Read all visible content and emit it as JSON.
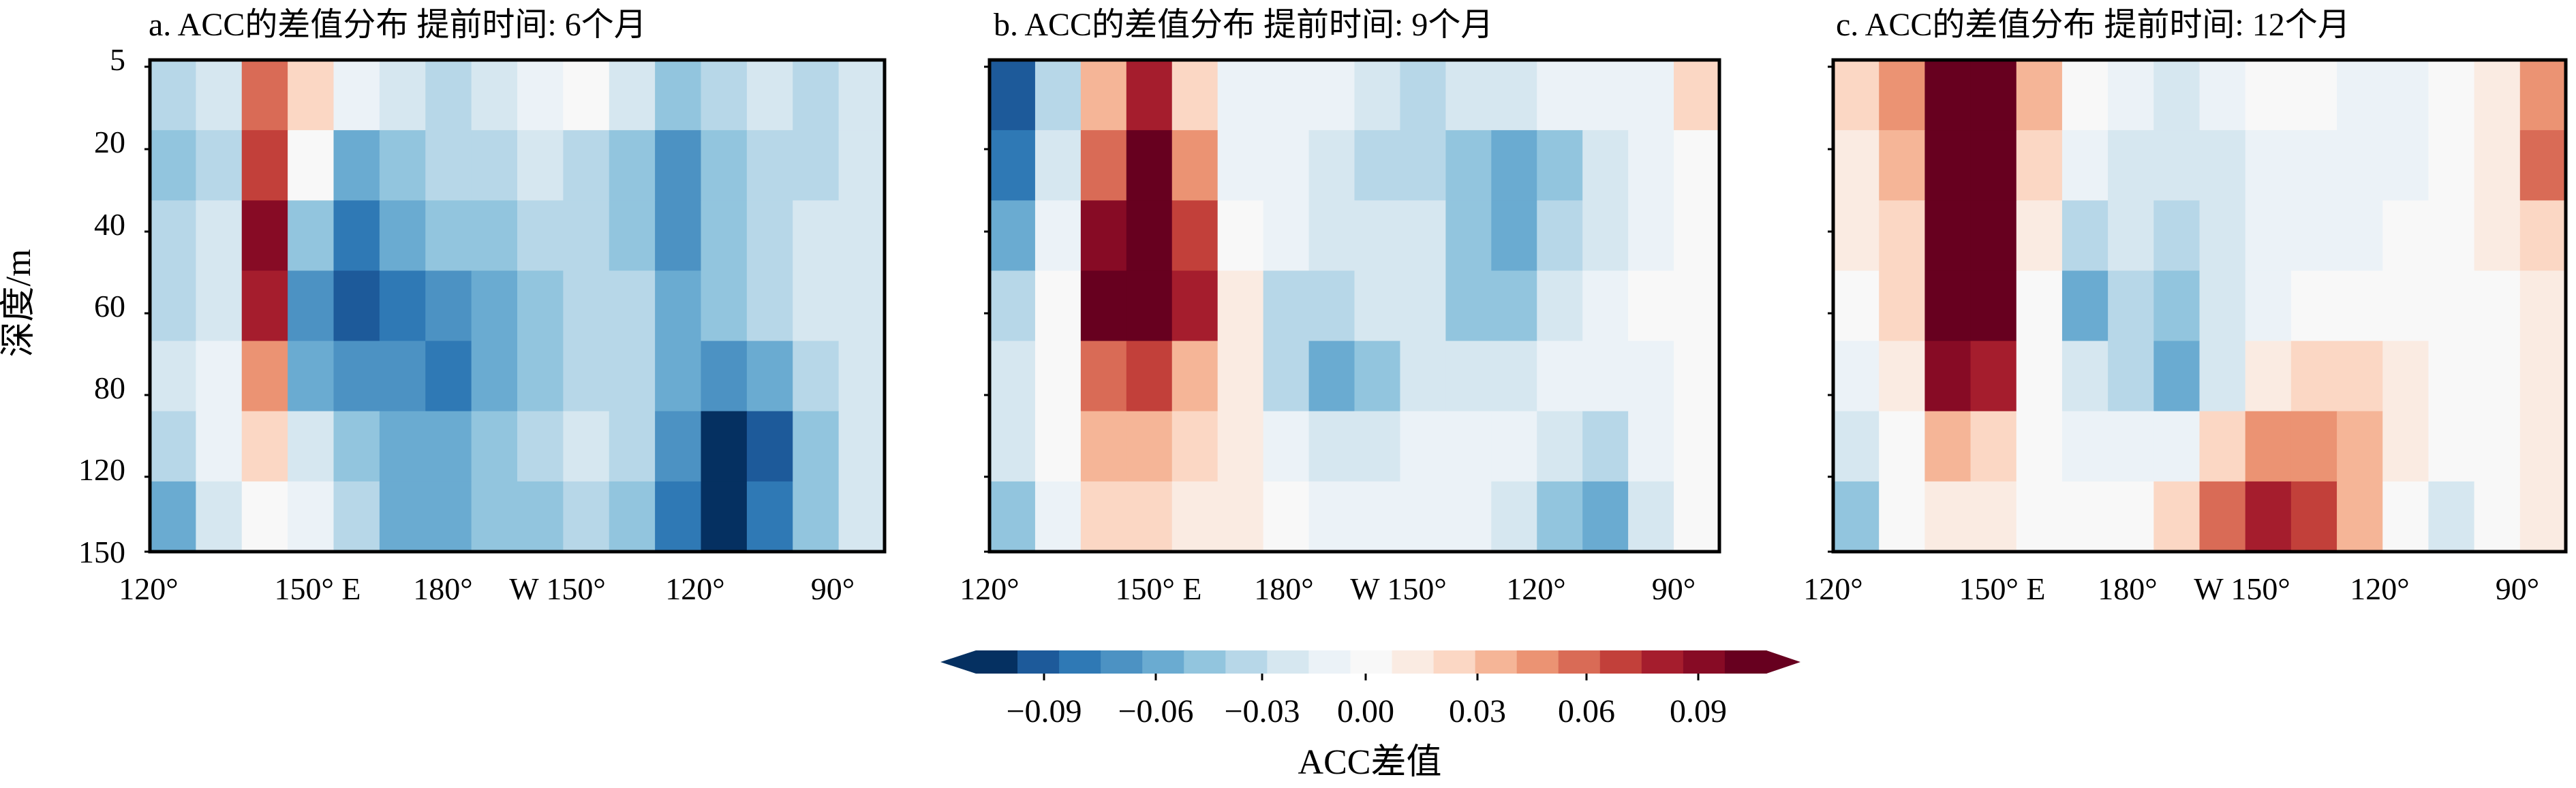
{
  "figure": {
    "y_axis_label": "深度/m",
    "y_tick_labels": [
      "5",
      "20",
      "40",
      "60",
      "80",
      "120",
      "150"
    ],
    "colorbar_label": "ACC差值"
  },
  "colors": {
    "diverging_scale": [
      "#053061",
      "#1d5a9a",
      "#2f79b5",
      "#4c92c3",
      "#6aabd1",
      "#92c5de",
      "#b7d7e8",
      "#d6e7f0",
      "#ebf2f7",
      "#f8f8f8",
      "#faebe2",
      "#fbd7c4",
      "#f5b597",
      "#eb9373",
      "#d96b56",
      "#c2403a",
      "#a51d2d",
      "#870b25",
      "#67001f"
    ],
    "frame": "#000000"
  },
  "chart_data": [
    {
      "type": "heatmap",
      "title": "a. ACC的差值分布 提前时间: 6个月",
      "x_tick_labels": [
        "120°",
        "150° E",
        "180°",
        "W 150°",
        "120°",
        "90°"
      ],
      "xlabel": "",
      "ylabel": "深度/m",
      "x_centers": [
        "125E",
        "135E",
        "145E",
        "155E",
        "165E",
        "175E",
        "175W",
        "165W",
        "155W",
        "145W",
        "135W",
        "125W",
        "115W",
        "105W",
        "95W",
        "85W"
      ],
      "y_levels_m": [
        5,
        20,
        40,
        60,
        80,
        120,
        150
      ],
      "z": [
        [
          -0.03,
          -0.02,
          0.05,
          0.02,
          -0.01,
          -0.02,
          -0.03,
          -0.02,
          -0.01,
          0.0,
          -0.02,
          -0.04,
          -0.03,
          -0.02,
          -0.03,
          -0.02
        ],
        [
          -0.04,
          -0.03,
          0.06,
          0.0,
          -0.05,
          -0.04,
          -0.03,
          -0.03,
          -0.02,
          -0.03,
          -0.04,
          -0.06,
          -0.04,
          -0.03,
          -0.03,
          -0.02
        ],
        [
          -0.03,
          -0.02,
          0.08,
          -0.04,
          -0.07,
          -0.05,
          -0.04,
          -0.04,
          -0.03,
          -0.03,
          -0.04,
          -0.06,
          -0.04,
          -0.03,
          -0.02,
          -0.02
        ],
        [
          -0.03,
          -0.02,
          0.07,
          -0.06,
          -0.08,
          -0.07,
          -0.06,
          -0.05,
          -0.04,
          -0.03,
          -0.03,
          -0.05,
          -0.04,
          -0.03,
          -0.02,
          -0.02
        ],
        [
          -0.02,
          -0.01,
          0.04,
          -0.05,
          -0.06,
          -0.06,
          -0.07,
          -0.05,
          -0.04,
          -0.03,
          -0.03,
          -0.05,
          -0.06,
          -0.05,
          -0.03,
          -0.02
        ],
        [
          -0.03,
          -0.01,
          0.02,
          -0.02,
          -0.04,
          -0.05,
          -0.05,
          -0.04,
          -0.03,
          -0.02,
          -0.03,
          -0.06,
          -0.09,
          -0.08,
          -0.04,
          -0.02
        ],
        [
          -0.05,
          -0.02,
          0.0,
          -0.01,
          -0.03,
          -0.05,
          -0.05,
          -0.04,
          -0.04,
          -0.03,
          -0.04,
          -0.07,
          -0.1,
          -0.07,
          -0.04,
          -0.02
        ]
      ],
      "colorbar_range": [
        -0.09,
        0.09
      ]
    },
    {
      "type": "heatmap",
      "title": "b. ACC的差值分布 提前时间: 9个月",
      "x_tick_labels": [
        "120°",
        "150° E",
        "180°",
        "W 150°",
        "120°",
        "90°"
      ],
      "xlabel": "",
      "ylabel": "",
      "x_centers": [
        "125E",
        "135E",
        "145E",
        "155E",
        "165E",
        "175E",
        "175W",
        "165W",
        "155W",
        "145W",
        "135W",
        "125W",
        "115W",
        "105W",
        "95W",
        "85W"
      ],
      "y_levels_m": [
        5,
        20,
        40,
        60,
        80,
        120,
        150
      ],
      "z": [
        [
          -0.08,
          -0.03,
          0.03,
          0.07,
          0.02,
          -0.01,
          -0.01,
          -0.01,
          -0.02,
          -0.03,
          -0.02,
          -0.02,
          -0.01,
          -0.01,
          -0.01,
          0.02
        ],
        [
          -0.07,
          -0.02,
          0.05,
          0.1,
          0.04,
          -0.01,
          -0.01,
          -0.02,
          -0.03,
          -0.03,
          -0.04,
          -0.05,
          -0.04,
          -0.02,
          -0.01,
          0.0
        ],
        [
          -0.05,
          -0.01,
          0.08,
          0.1,
          0.06,
          0.0,
          -0.01,
          -0.02,
          -0.02,
          -0.02,
          -0.04,
          -0.05,
          -0.03,
          -0.02,
          -0.01,
          0.0
        ],
        [
          -0.03,
          0.0,
          0.09,
          0.1,
          0.07,
          0.01,
          -0.03,
          -0.03,
          -0.02,
          -0.02,
          -0.04,
          -0.04,
          -0.02,
          -0.01,
          0.0,
          0.0
        ],
        [
          -0.02,
          0.0,
          0.05,
          0.06,
          0.03,
          0.01,
          -0.03,
          -0.05,
          -0.04,
          -0.02,
          -0.02,
          -0.02,
          -0.01,
          -0.01,
          -0.01,
          0.0
        ],
        [
          -0.02,
          0.0,
          0.03,
          0.03,
          0.02,
          0.01,
          -0.01,
          -0.02,
          -0.02,
          -0.01,
          -0.01,
          -0.01,
          -0.02,
          -0.03,
          -0.01,
          0.0
        ],
        [
          -0.04,
          -0.01,
          0.02,
          0.02,
          0.01,
          0.01,
          0.0,
          -0.01,
          -0.01,
          -0.01,
          -0.01,
          -0.02,
          -0.04,
          -0.05,
          -0.02,
          0.0
        ]
      ],
      "colorbar_range": [
        -0.09,
        0.09
      ]
    },
    {
      "type": "heatmap",
      "title": "c. ACC的差值分布 提前时间: 12个月",
      "x_tick_labels": [
        "120°",
        "150° E",
        "180°",
        "W 150°",
        "120°",
        "90°"
      ],
      "xlabel": "",
      "ylabel": "",
      "x_centers": [
        "125E",
        "135E",
        "145E",
        "155E",
        "165E",
        "175E",
        "175W",
        "165W",
        "155W",
        "145W",
        "135W",
        "125W",
        "115W",
        "105W",
        "95W",
        "85W"
      ],
      "y_levels_m": [
        5,
        20,
        40,
        60,
        80,
        120,
        150
      ],
      "z": [
        [
          0.02,
          0.04,
          0.1,
          0.1,
          0.03,
          0.0,
          -0.01,
          -0.02,
          -0.01,
          0.0,
          0.0,
          -0.01,
          -0.01,
          0.0,
          0.01,
          0.04
        ],
        [
          0.01,
          0.03,
          0.1,
          0.1,
          0.02,
          -0.01,
          -0.02,
          -0.02,
          -0.02,
          -0.01,
          -0.01,
          -0.01,
          -0.01,
          0.0,
          0.01,
          0.05
        ],
        [
          0.01,
          0.02,
          0.1,
          0.1,
          0.01,
          -0.03,
          -0.02,
          -0.03,
          -0.02,
          -0.01,
          -0.01,
          -0.01,
          0.0,
          0.0,
          0.01,
          0.02
        ],
        [
          0.0,
          0.02,
          0.1,
          0.1,
          0.0,
          -0.05,
          -0.03,
          -0.04,
          -0.02,
          -0.01,
          0.0,
          0.0,
          0.0,
          0.0,
          0.0,
          0.01
        ],
        [
          -0.01,
          0.01,
          0.08,
          0.07,
          0.0,
          -0.02,
          -0.03,
          -0.05,
          -0.02,
          0.01,
          0.02,
          0.02,
          0.01,
          0.0,
          0.0,
          0.01
        ],
        [
          -0.02,
          0.0,
          0.03,
          0.02,
          0.0,
          -0.01,
          -0.01,
          -0.01,
          0.02,
          0.04,
          0.04,
          0.03,
          0.01,
          0.0,
          0.0,
          0.01
        ],
        [
          -0.04,
          0.0,
          0.01,
          0.01,
          0.0,
          0.0,
          0.0,
          0.02,
          0.05,
          0.07,
          0.06,
          0.03,
          0.0,
          -0.02,
          0.0,
          0.01
        ]
      ],
      "colorbar_range": [
        -0.09,
        0.09
      ]
    },
    {
      "type": "colorbar",
      "label": "ACC差值",
      "tick_labels": [
        "−0.09",
        "−0.06",
        "−0.03",
        "0.00",
        "0.03",
        "0.06",
        "0.09"
      ],
      "range": [
        -0.09,
        0.09
      ],
      "extend": "both"
    }
  ]
}
